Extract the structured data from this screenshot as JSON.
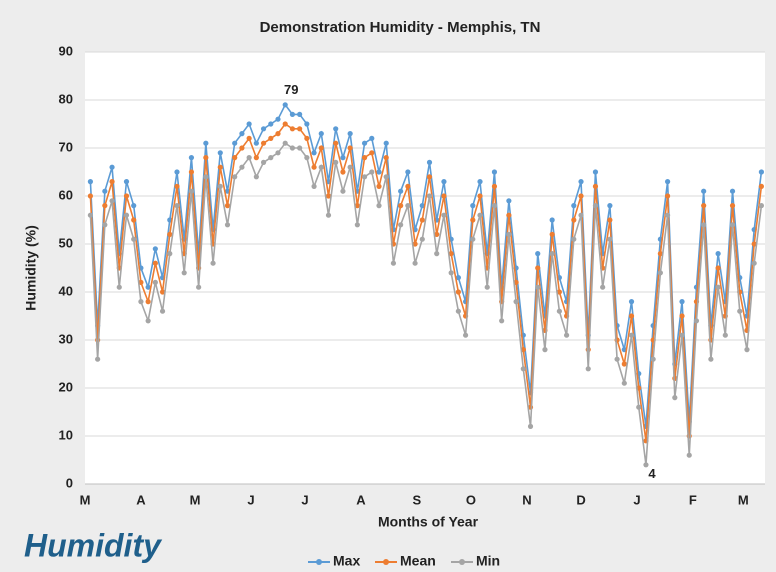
{
  "chart_data": {
    "type": "line",
    "title": "Demonstration Humidity - Memphis, TN",
    "xlabel": "Months of Year",
    "ylabel": "Humidity (%)",
    "x": [
      3,
      7,
      11,
      15,
      19,
      23,
      27,
      31,
      35,
      39,
      43,
      47,
      51,
      55,
      59,
      63,
      67,
      71,
      75,
      79,
      83,
      87,
      91,
      95,
      99,
      103,
      107,
      111,
      115,
      119,
      123,
      127,
      131,
      135,
      139,
      143,
      147,
      151,
      155,
      159,
      163,
      167,
      171,
      175,
      179,
      183,
      187,
      191,
      195,
      199,
      203,
      207,
      211,
      215,
      219,
      223,
      227,
      231,
      235,
      239,
      243,
      247,
      251,
      255,
      259,
      263,
      267,
      271,
      275,
      279,
      283,
      287,
      291,
      295,
      299,
      303,
      307,
      311,
      315,
      319,
      323,
      327,
      331,
      335,
      339,
      343,
      347,
      351,
      355,
      359,
      363,
      367,
      371,
      375
    ],
    "series": [
      {
        "name": "Max",
        "color": "#5b9bd5",
        "values": [
          63,
          33,
          61,
          66,
          48,
          63,
          58,
          45,
          41,
          49,
          43,
          55,
          65,
          51,
          68,
          48,
          71,
          53,
          69,
          61,
          71,
          73,
          75,
          71,
          74,
          75,
          76,
          79,
          77,
          77,
          75,
          69,
          73,
          63,
          74,
          68,
          73,
          61,
          71,
          72,
          65,
          71,
          53,
          61,
          65,
          53,
          58,
          67,
          55,
          63,
          51,
          43,
          38,
          58,
          63,
          48,
          65,
          41,
          59,
          45,
          31,
          19,
          48,
          35,
          55,
          43,
          38,
          58,
          63,
          31,
          65,
          48,
          58,
          33,
          28,
          38,
          23,
          12,
          33,
          51,
          63,
          25,
          38,
          13,
          41,
          61,
          33,
          48,
          38,
          61,
          43,
          35,
          53,
          65
        ]
      },
      {
        "name": "Mean",
        "color": "#ed7d31",
        "values": [
          60,
          30,
          58,
          63,
          45,
          60,
          55,
          42,
          38,
          46,
          40,
          52,
          62,
          48,
          65,
          45,
          68,
          50,
          66,
          58,
          68,
          70,
          72,
          68,
          71,
          72,
          73,
          75,
          74,
          74,
          72,
          66,
          70,
          60,
          71,
          65,
          70,
          58,
          68,
          69,
          62,
          68,
          50,
          58,
          62,
          50,
          55,
          64,
          52,
          60,
          48,
          40,
          35,
          55,
          60,
          45,
          62,
          38,
          56,
          42,
          28,
          16,
          45,
          32,
          52,
          40,
          35,
          55,
          60,
          28,
          62,
          45,
          55,
          30,
          25,
          35,
          20,
          9,
          30,
          48,
          60,
          22,
          35,
          10,
          38,
          58,
          30,
          45,
          35,
          58,
          40,
          32,
          50,
          62
        ]
      },
      {
        "name": "Min",
        "color": "#a5a5a5",
        "values": [
          56,
          26,
          54,
          59,
          41,
          56,
          51,
          38,
          34,
          42,
          36,
          48,
          58,
          44,
          61,
          41,
          64,
          46,
          62,
          54,
          64,
          66,
          68,
          64,
          67,
          68,
          69,
          71,
          70,
          70,
          68,
          62,
          66,
          56,
          67,
          61,
          66,
          54,
          64,
          65,
          58,
          64,
          46,
          54,
          58,
          46,
          51,
          60,
          48,
          56,
          44,
          36,
          31,
          51,
          56,
          41,
          58,
          34,
          52,
          38,
          24,
          12,
          41,
          28,
          48,
          36,
          31,
          51,
          56,
          24,
          58,
          41,
          51,
          26,
          21,
          31,
          16,
          4,
          26,
          44,
          56,
          18,
          31,
          6,
          34,
          54,
          26,
          41,
          31,
          54,
          36,
          28,
          46,
          58
        ]
      }
    ],
    "xlim": [
      0,
      377
    ],
    "xticks": [
      {
        "value": 0,
        "label": "M"
      },
      {
        "value": 31,
        "label": "A"
      },
      {
        "value": 61,
        "label": "M"
      },
      {
        "value": 92,
        "label": "J"
      },
      {
        "value": 122,
        "label": "J"
      },
      {
        "value": 153,
        "label": "A"
      },
      {
        "value": 184,
        "label": "S"
      },
      {
        "value": 214,
        "label": "O"
      },
      {
        "value": 245,
        "label": "N"
      },
      {
        "value": 275,
        "label": "D"
      },
      {
        "value": 306,
        "label": "J"
      },
      {
        "value": 337,
        "label": "F"
      },
      {
        "value": 365,
        "label": "M"
      }
    ],
    "ylim": [
      0,
      90
    ],
    "yticks": [
      0,
      10,
      20,
      30,
      40,
      50,
      60,
      70,
      80,
      90
    ],
    "grid": true,
    "legend": "bottom",
    "annotations": [
      {
        "text": "79",
        "x": 111,
        "y": 79
      },
      {
        "text": "4",
        "x": 311,
        "y": 4
      }
    ]
  },
  "caption": "Humidity"
}
